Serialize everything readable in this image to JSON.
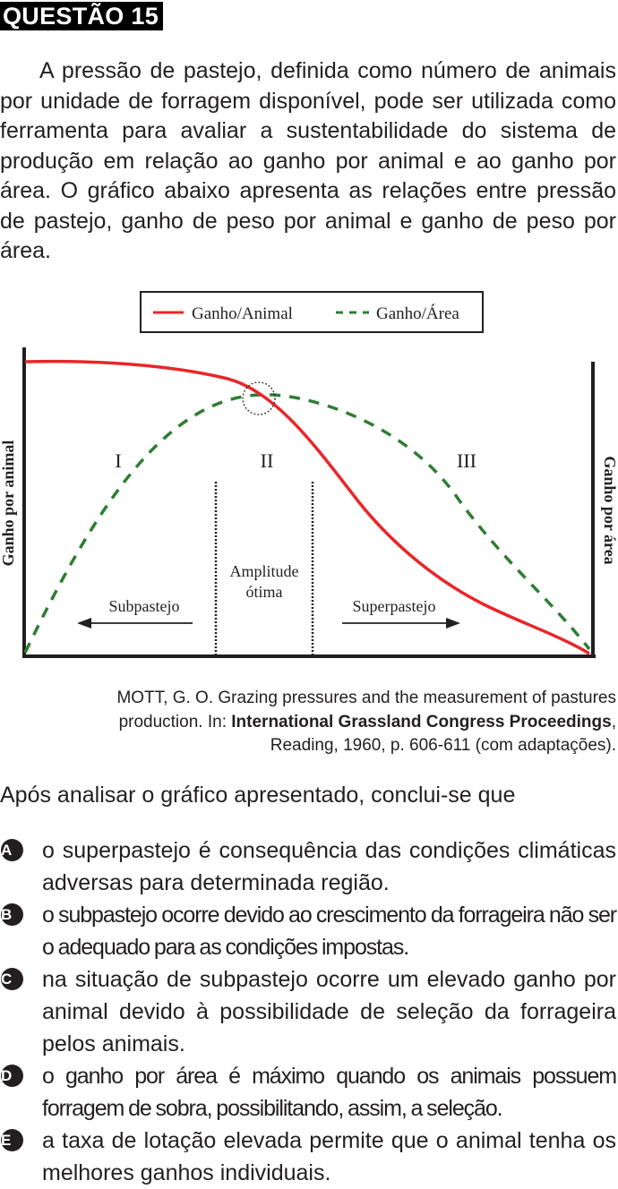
{
  "header": {
    "title": "QUESTÃO 15"
  },
  "intro": "A pressão de pastejo, definida como número de animais por unidade de forragem disponível, pode ser utilizada como ferramenta para avaliar a sustentabilidade do sistema de produção em relação ao ganho por animal e ao ganho por área. O gráfico abaixo apresenta as relações entre pressão de pastejo, ganho de peso por animal e ganho de peso por área.",
  "chart_data": {
    "type": "line",
    "legend": [
      "Ganho/Animal",
      "Ganho/Área"
    ],
    "legend_position": "top-center",
    "ylabel_left": "Ganho por animal",
    "ylabel_right": "Ganho por área",
    "regions": [
      "I",
      "II",
      "III"
    ],
    "center_label_line1": "Amplitude",
    "center_label_line2": "ótima",
    "left_arrow_label": "Subpastejo",
    "right_arrow_label": "Superpastejo",
    "colors": {
      "animal": "#e8262a",
      "area": "#2e7d32"
    },
    "grid": false
  },
  "source": {
    "authors": "MOTT, G. O. Grazing pressures and the measurement of pastures",
    "line2_pre": "production. In: ",
    "line2_bold": "International Grassland Congress Proceedings",
    "line2_post": ",",
    "line3": "Reading, 1960, p. 606-611 (com adaptações)."
  },
  "question": "Após analisar o gráfico apresentado, conclui-se que",
  "options": [
    {
      "letter": "A",
      "text": "o superpastejo é consequência das condições climáticas adversas para determinada região."
    },
    {
      "letter": "B",
      "text": "o subpastejo ocorre devido ao crescimento da forrageira não ser o adequado para as condições impostas."
    },
    {
      "letter": "C",
      "text": "na situação de subpastejo ocorre um elevado ganho por animal devido à possibilidade de seleção da forrageira pelos animais."
    },
    {
      "letter": "D",
      "text": "o ganho por área é máximo quando os animais possuem forragem de sobra, possibilitando, assim, a seleção."
    },
    {
      "letter": "E",
      "text": "a taxa de lotação elevada permite que o animal tenha os melhores ganhos individuais."
    }
  ]
}
